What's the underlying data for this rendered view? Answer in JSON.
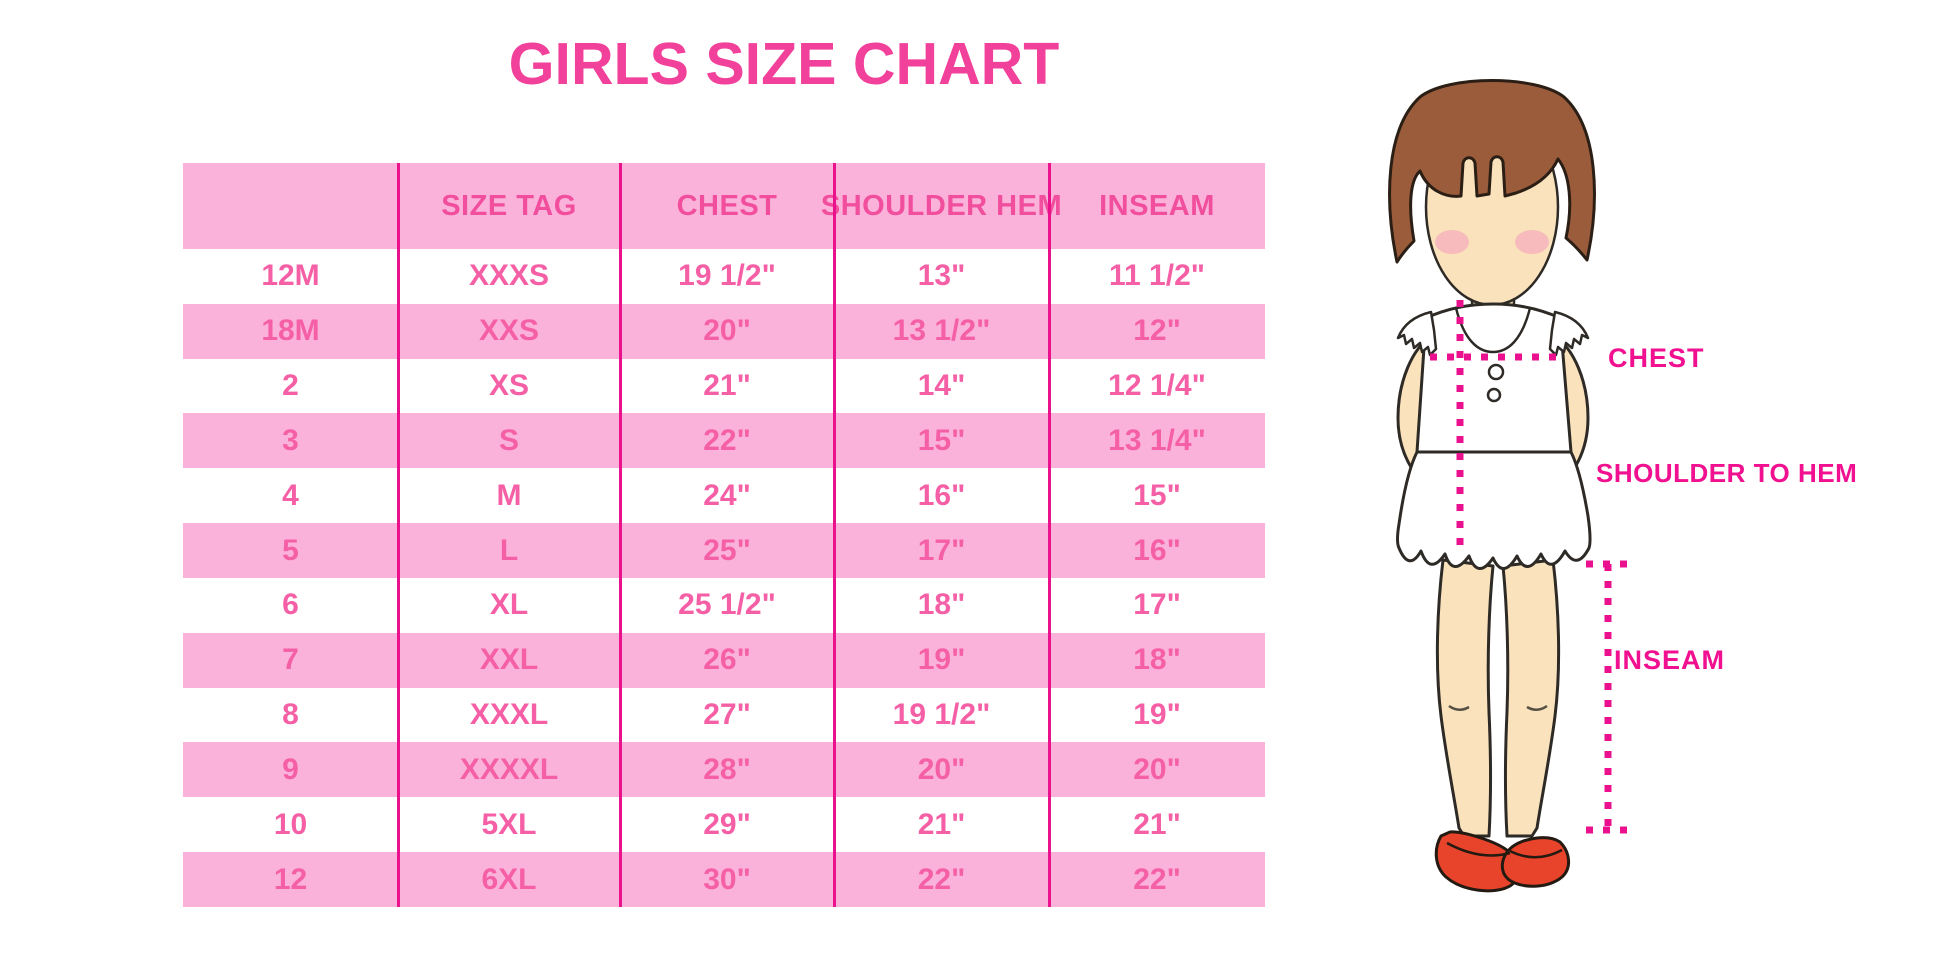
{
  "title": "GIRLS SIZE CHART",
  "chart_data": {
    "type": "table",
    "title": "GIRLS SIZE CHART",
    "columns": [
      "",
      "SIZE TAG",
      "CHEST",
      "SHOULDER HEM",
      "INSEAM"
    ],
    "rows": [
      [
        "12M",
        "XXXS",
        "19 1/2\"",
        "13\"",
        "11 1/2\""
      ],
      [
        "18M",
        "XXS",
        "20\"",
        "13 1/2\"",
        "12\""
      ],
      [
        "2",
        "XS",
        "21\"",
        "14\"",
        "12 1/4\""
      ],
      [
        "3",
        "S",
        "22\"",
        "15\"",
        "13 1/4\""
      ],
      [
        "4",
        "M",
        "24\"",
        "16\"",
        "15\""
      ],
      [
        "5",
        "L",
        "25\"",
        "17\"",
        "16\""
      ],
      [
        "6",
        "XL",
        "25 1/2\"",
        "18\"",
        "17\""
      ],
      [
        "7",
        "XXL",
        "26\"",
        "19\"",
        "18\""
      ],
      [
        "8",
        "XXXL",
        "27\"",
        "19 1/2\"",
        "19\""
      ],
      [
        "9",
        "XXXXL",
        "28\"",
        "20\"",
        "20\""
      ],
      [
        "10",
        "5XL",
        "29\"",
        "21\"",
        "21\""
      ],
      [
        "12",
        "6XL",
        "30\"",
        "22\"",
        "22\""
      ]
    ],
    "layout": {
      "alternating_row_colors": [
        "white",
        "pink"
      ],
      "column_dividers": true,
      "legend_position": "none"
    }
  },
  "figure": {
    "description": "illustration of a girl used to show measurement locations",
    "labels": {
      "chest": "CHEST",
      "shoulder_to_hem": "SHOULDER TO HEM",
      "inseam": "INSEAM"
    }
  },
  "colors": {
    "title_pink": "#F2419A",
    "row_pink_bg": "#FBB2DA",
    "table_text_pink": "#F55FA5",
    "header_text_pink": "#F24E9E",
    "divider_magenta": "#E9118C",
    "label_magenta": "#F01090",
    "dotted_line_magenta": "#EB108E",
    "shoe_red": "#E8432B",
    "hair_brown": "#9B5C3C",
    "skin_tone": "#FAE3BC"
  }
}
